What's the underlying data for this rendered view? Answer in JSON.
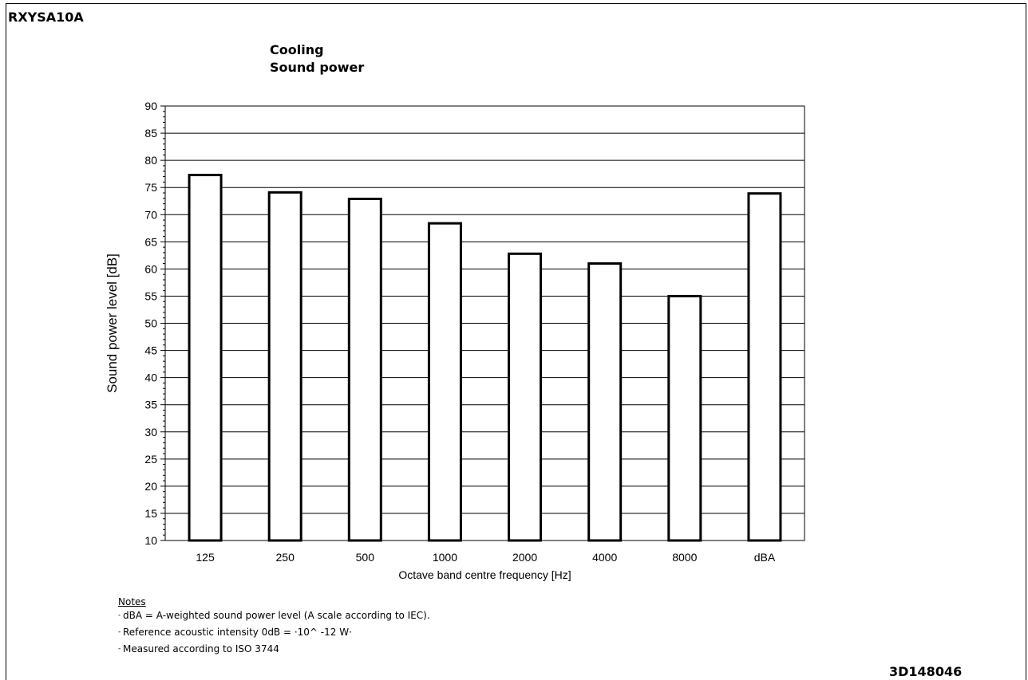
{
  "model": "RXYSA10A",
  "title_lines": [
    "Cooling",
    "Sound power"
  ],
  "document_number": "3D148046",
  "notes": {
    "heading": "Notes",
    "items": [
      "dBA = A-weighted sound power level (A scale according to IEC).",
      "Reference acoustic intensity 0dB = ·10^ -12 W·",
      "Measured according to ISO 3744"
    ]
  },
  "chart_data": {
    "type": "bar",
    "title": "Cooling Sound power",
    "xlabel": "Octave band centre frequency [Hz]",
    "ylabel": "Sound power level [dB]",
    "ylim": [
      10,
      90
    ],
    "ytick_step": 5,
    "grid": "horizontal",
    "legend": "none",
    "categories": [
      "125",
      "250",
      "500",
      "1000",
      "2000",
      "4000",
      "8000",
      "dBA"
    ],
    "values": [
      77.3,
      74.1,
      72.9,
      68.4,
      62.8,
      61.0,
      55.0,
      73.9
    ],
    "colors": {
      "bar_fill": "#ffffff",
      "bar_stroke": "#000000",
      "grid": "#000000"
    }
  }
}
